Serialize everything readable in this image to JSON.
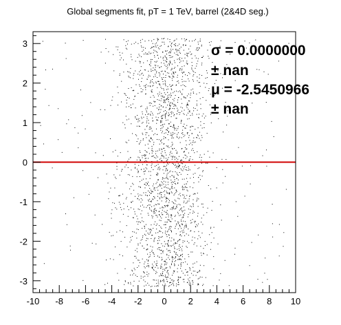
{
  "chart_data": {
    "type": "scatter",
    "title": "Global segments fit, pT = 1 TeV, barrel (2&4D seg.)",
    "xlabel": "",
    "ylabel": "",
    "xlim": [
      -10,
      10
    ],
    "ylim": [
      -3.3,
      3.3
    ],
    "x_ticks": [
      -10,
      -8,
      -6,
      -4,
      -2,
      0,
      2,
      4,
      6,
      8,
      10
    ],
    "x_tick_labels": [
      "-10",
      "-8",
      "-6",
      "-4",
      "-2",
      "0",
      "2",
      "4",
      "6",
      "8",
      "10"
    ],
    "y_ticks": [
      -3,
      -2,
      -1,
      0,
      1,
      2,
      3
    ],
    "y_tick_labels": [
      "-3",
      "-2",
      "-1",
      "0",
      "1",
      "2",
      "3"
    ],
    "grid": false,
    "point_cloud": {
      "count": 2400,
      "x_center": 0,
      "x_spread": 1.7,
      "y_range": [
        -3.14,
        3.14
      ]
    },
    "fit_line": {
      "y": 0,
      "color": "#d00000"
    },
    "stats": {
      "sigma": "σ = 0.0000000",
      "sigma_err": "± nan",
      "mu": "μ = -2.5450966",
      "mu_err": "± nan"
    },
    "colors": {
      "points": "#000000",
      "fit": "#d00000",
      "axes": "#000000"
    }
  }
}
